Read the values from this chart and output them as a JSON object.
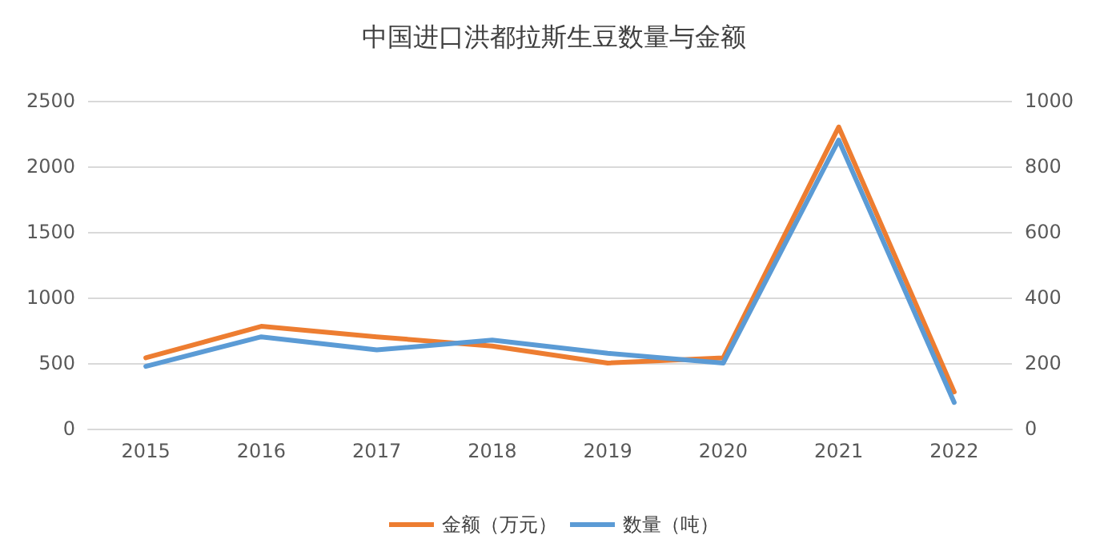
{
  "chart_data": {
    "type": "line",
    "title": "中国进口洪都拉斯生豆数量与金额",
    "categories": [
      "2015",
      "2016",
      "2017",
      "2018",
      "2019",
      "2020",
      "2021",
      "2022"
    ],
    "series": [
      {
        "name": "金额（万元）",
        "color": "#ed7d31",
        "values": [
          540,
          780,
          700,
          630,
          500,
          540,
          2300,
          280
        ]
      },
      {
        "name": "数量（吨）",
        "color": "#5b9bd5",
        "axis": "y2",
        "values": [
          190,
          280,
          240,
          270,
          230,
          200,
          880,
          80
        ]
      }
    ],
    "ylim": [
      0,
      2500
    ],
    "yticks": [
      0,
      500,
      1000,
      1500,
      2000,
      2500
    ],
    "y2lim": [
      0,
      1000
    ],
    "y2ticks": [
      0,
      200,
      400,
      600,
      800,
      1000
    ],
    "grid": "y",
    "legend": "bottom",
    "marker": "none",
    "line_style": "solid"
  }
}
